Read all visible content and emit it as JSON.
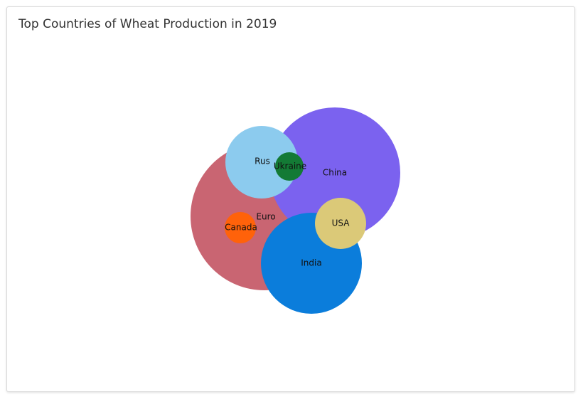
{
  "chart_data": {
    "type": "bubble",
    "title": "Top Countries of Wheat Production in 2019",
    "series": [
      {
        "name": "Europe",
        "color": "#c96572"
      },
      {
        "name": "China",
        "color": "#7b62ef"
      },
      {
        "name": "India",
        "color": "#0b7ddb"
      },
      {
        "name": "Russia",
        "color": "#8ccbee"
      },
      {
        "name": "USA",
        "color": "#dbc978"
      },
      {
        "name": "Canada",
        "color": "#ff620a"
      },
      {
        "name": "Ukraine",
        "color": "#137a35"
      }
    ],
    "labels": {
      "Europe": "Euro",
      "China": "China",
      "India": "India",
      "Russia": "Rus",
      "USA": "USA",
      "Canada": "Canada",
      "Ukraine": "Ukraine"
    }
  }
}
